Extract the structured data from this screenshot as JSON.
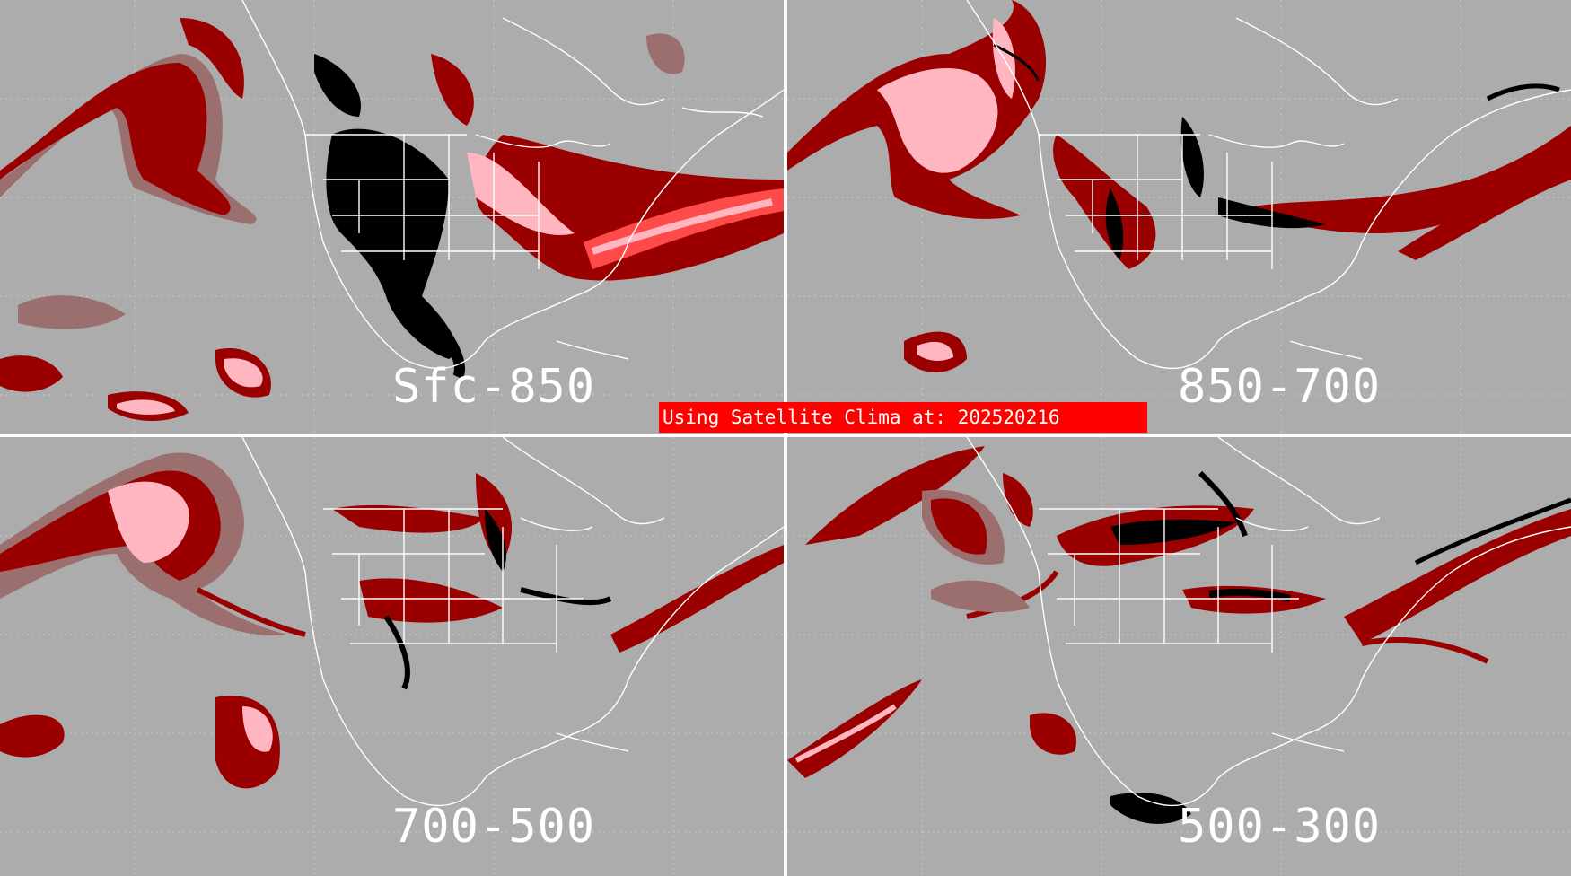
{
  "panels": [
    {
      "label": "Sfc-850"
    },
    {
      "label": "850-700"
    },
    {
      "label": "700-500"
    },
    {
      "label": "500-300"
    }
  ],
  "banner": {
    "text": "Using Satellite Clima at: 202520216"
  },
  "colors": {
    "background": "#acacac",
    "dark_red": "#9a0000",
    "rosy_brown": "#9c6f6f",
    "pink": "#ffb6c1",
    "black": "#000000",
    "banner_red": "#ff0000",
    "outline": "#ffffff"
  }
}
